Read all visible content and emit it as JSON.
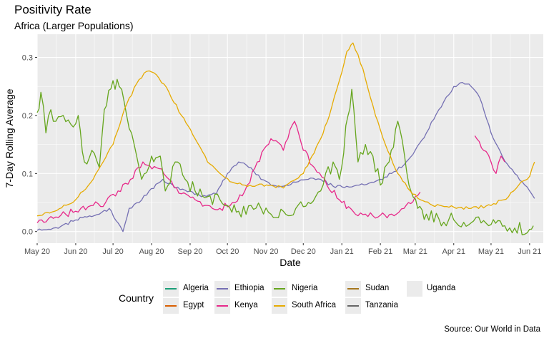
{
  "title": "Positivity Rate",
  "subtitle": "Africa (Larger Populations)",
  "caption": "Source:  Our World in Data",
  "chart_data": {
    "type": "line",
    "xlabel": "Date",
    "ylabel": "7-Day Rolling Average",
    "x_range": [
      "2020-05-01",
      "2021-06-12"
    ],
    "ylim": [
      -0.02,
      0.34
    ],
    "y_ticks": [
      0.0,
      0.1,
      0.2,
      0.3
    ],
    "y_tick_labels": [
      "0.0",
      "0.1",
      "0.2",
      "0.3"
    ],
    "x_ticks": [
      "2020-05-01",
      "2020-06-01",
      "2020-07-01",
      "2020-08-01",
      "2020-09-01",
      "2020-10-01",
      "2020-11-01",
      "2020-12-01",
      "2021-01-01",
      "2021-02-01",
      "2021-03-01",
      "2021-04-01",
      "2021-05-01",
      "2021-06-01"
    ],
    "x_tick_labels": [
      "May 20",
      "Jun 20",
      "Jul 20",
      "Aug 20",
      "Sep 20",
      "Oct 20",
      "Nov 20",
      "Dec 20",
      "Jan 21",
      "Feb 21",
      "Mar 21",
      "Apr 21",
      "May 21",
      "Jun 21"
    ],
    "grid": true,
    "background": "#ebebeb",
    "legend_title": "Country",
    "legend_position": "bottom",
    "series": [
      {
        "name": "Algeria",
        "color": "#1b9e77",
        "points": []
      },
      {
        "name": "Egypt",
        "color": "#d95f02",
        "points": []
      },
      {
        "name": "Ethiopia",
        "color": "#7570b3",
        "points": [
          [
            "2020-05-01",
            0.002
          ],
          [
            "2020-05-10",
            0.004
          ],
          [
            "2020-05-20",
            0.009
          ],
          [
            "2020-06-01",
            0.02
          ],
          [
            "2020-06-10",
            0.025
          ],
          [
            "2020-06-20",
            0.03
          ],
          [
            "2020-06-28",
            0.04
          ],
          [
            "2020-07-05",
            0.015
          ],
          [
            "2020-07-09",
            0.0
          ],
          [
            "2020-07-14",
            0.04
          ],
          [
            "2020-07-22",
            0.05
          ],
          [
            "2020-07-30",
            0.07
          ],
          [
            "2020-08-10",
            0.09
          ],
          [
            "2020-08-20",
            0.075
          ],
          [
            "2020-09-01",
            0.07
          ],
          [
            "2020-09-10",
            0.06
          ],
          [
            "2020-09-22",
            0.065
          ],
          [
            "2020-10-01",
            0.1
          ],
          [
            "2020-10-10",
            0.12
          ],
          [
            "2020-10-20",
            0.11
          ],
          [
            "2020-10-28",
            0.09
          ],
          [
            "2020-11-05",
            0.08
          ],
          [
            "2020-11-15",
            0.078
          ],
          [
            "2020-11-25",
            0.085
          ],
          [
            "2020-12-05",
            0.09
          ],
          [
            "2020-12-15",
            0.09
          ],
          [
            "2020-12-25",
            0.078
          ],
          [
            "2021-01-05",
            0.078
          ],
          [
            "2021-01-15",
            0.08
          ],
          [
            "2021-01-25",
            0.085
          ],
          [
            "2021-02-01",
            0.09
          ],
          [
            "2021-02-10",
            0.1
          ],
          [
            "2021-02-20",
            0.115
          ],
          [
            "2021-03-01",
            0.14
          ],
          [
            "2021-03-10",
            0.17
          ],
          [
            "2021-03-20",
            0.21
          ],
          [
            "2021-04-01",
            0.25
          ],
          [
            "2021-04-08",
            0.257
          ],
          [
            "2021-04-15",
            0.25
          ],
          [
            "2021-04-22",
            0.23
          ],
          [
            "2021-05-01",
            0.17
          ],
          [
            "2021-05-10",
            0.13
          ],
          [
            "2021-05-20",
            0.1
          ],
          [
            "2021-06-01",
            0.07
          ],
          [
            "2021-06-05",
            0.057
          ]
        ]
      },
      {
        "name": "Kenya",
        "color": "#e7298a",
        "points": [
          [
            "2020-05-01",
            0.015
          ],
          [
            "2020-05-10",
            0.022
          ],
          [
            "2020-05-20",
            0.028
          ],
          [
            "2020-06-01",
            0.035
          ],
          [
            "2020-06-15",
            0.045
          ],
          [
            "2020-06-25",
            0.05
          ],
          [
            "2020-07-05",
            0.07
          ],
          [
            "2020-07-15",
            0.09
          ],
          [
            "2020-07-25",
            0.12
          ],
          [
            "2020-08-05",
            0.11
          ],
          [
            "2020-08-15",
            0.09
          ],
          [
            "2020-08-25",
            0.065
          ],
          [
            "2020-09-05",
            0.055
          ],
          [
            "2020-09-15",
            0.045
          ],
          [
            "2020-09-25",
            0.04
          ],
          [
            "2020-10-05",
            0.05
          ],
          [
            "2020-10-15",
            0.07
          ],
          [
            "2020-10-25",
            0.12
          ],
          [
            "2020-11-05",
            0.16
          ],
          [
            "2020-11-15",
            0.14
          ],
          [
            "2020-11-24",
            0.19
          ],
          [
            "2020-12-01",
            0.14
          ],
          [
            "2020-12-10",
            0.11
          ],
          [
            "2020-12-20",
            0.08
          ],
          [
            "2021-01-01",
            0.05
          ],
          [
            "2021-01-10",
            0.035
          ],
          [
            "2021-01-20",
            0.03
          ],
          [
            "2021-02-01",
            0.028
          ],
          [
            "2021-02-10",
            0.03
          ],
          [
            "2021-02-20",
            0.04
          ],
          [
            "2021-03-01",
            0.06
          ],
          [
            "2021-03-05",
            0.068
          ],
          null,
          [
            "2021-04-18",
            0.165
          ],
          [
            "2021-04-25",
            0.14
          ],
          [
            "2021-05-01",
            0.12
          ],
          [
            "2021-05-05",
            0.1
          ],
          [
            "2021-05-09",
            0.13
          ],
          [
            "2021-05-12",
            0.12
          ]
        ]
      },
      {
        "name": "Nigeria",
        "color": "#66a61e",
        "points": [
          [
            "2020-05-01",
            0.205
          ],
          [
            "2020-05-04",
            0.24
          ],
          [
            "2020-05-08",
            0.17
          ],
          [
            "2020-05-12",
            0.21
          ],
          [
            "2020-05-16",
            0.19
          ],
          [
            "2020-05-22",
            0.2
          ],
          [
            "2020-05-28",
            0.185
          ],
          [
            "2020-06-03",
            0.2
          ],
          [
            "2020-06-08",
            0.12
          ],
          [
            "2020-06-14",
            0.14
          ],
          [
            "2020-06-20",
            0.11
          ],
          [
            "2020-06-24",
            0.21
          ],
          [
            "2020-07-01",
            0.26
          ],
          [
            "2020-07-06",
            0.25
          ],
          [
            "2020-07-12",
            0.2
          ],
          [
            "2020-07-18",
            0.15
          ],
          [
            "2020-07-24",
            0.09
          ],
          [
            "2020-08-01",
            0.13
          ],
          [
            "2020-08-08",
            0.13
          ],
          [
            "2020-08-12",
            0.07
          ],
          [
            "2020-08-20",
            0.12
          ],
          [
            "2020-08-28",
            0.09
          ],
          [
            "2020-09-05",
            0.07
          ],
          [
            "2020-09-15",
            0.06
          ],
          [
            "2020-09-25",
            0.055
          ],
          [
            "2020-10-01",
            0.045
          ],
          [
            "2020-10-10",
            0.035
          ],
          [
            "2020-10-20",
            0.045
          ],
          [
            "2020-10-28",
            0.04
          ],
          [
            "2020-11-05",
            0.03
          ],
          [
            "2020-11-15",
            0.035
          ],
          [
            "2020-11-25",
            0.04
          ],
          [
            "2020-12-05",
            0.05
          ],
          [
            "2020-12-15",
            0.07
          ],
          [
            "2020-12-25",
            0.12
          ],
          [
            "2020-12-30",
            0.09
          ],
          [
            "2021-01-06",
            0.2
          ],
          [
            "2021-01-09",
            0.245
          ],
          [
            "2021-01-14",
            0.12
          ],
          [
            "2021-01-20",
            0.15
          ],
          [
            "2021-01-26",
            0.13
          ],
          [
            "2021-02-01",
            0.08
          ],
          [
            "2021-02-08",
            0.12
          ],
          [
            "2021-02-15",
            0.19
          ],
          [
            "2021-02-24",
            0.08
          ],
          [
            "2021-03-03",
            0.04
          ],
          [
            "2021-03-10",
            0.03
          ],
          [
            "2021-03-20",
            0.022
          ],
          [
            "2021-04-01",
            0.02
          ],
          [
            "2021-04-15",
            0.015
          ],
          [
            "2021-05-01",
            0.012
          ],
          [
            "2021-05-12",
            0.01
          ],
          [
            "2021-05-20",
            0.006
          ],
          [
            "2021-06-01",
            0.004
          ],
          [
            "2021-06-04",
            0.01
          ]
        ]
      },
      {
        "name": "South Africa",
        "color": "#e6ab02",
        "points": [
          [
            "2020-05-01",
            0.027
          ],
          [
            "2020-05-15",
            0.035
          ],
          [
            "2020-06-01",
            0.055
          ],
          [
            "2020-06-15",
            0.09
          ],
          [
            "2020-07-01",
            0.15
          ],
          [
            "2020-07-10",
            0.21
          ],
          [
            "2020-07-20",
            0.255
          ],
          [
            "2020-07-28",
            0.276
          ],
          [
            "2020-08-05",
            0.27
          ],
          [
            "2020-08-15",
            0.24
          ],
          [
            "2020-08-25",
            0.2
          ],
          [
            "2020-09-05",
            0.16
          ],
          [
            "2020-09-15",
            0.12
          ],
          [
            "2020-09-25",
            0.1
          ],
          [
            "2020-10-05",
            0.085
          ],
          [
            "2020-10-15",
            0.08
          ],
          [
            "2020-10-25",
            0.08
          ],
          [
            "2020-11-05",
            0.08
          ],
          [
            "2020-11-15",
            0.075
          ],
          [
            "2020-11-25",
            0.09
          ],
          [
            "2020-12-01",
            0.1
          ],
          [
            "2020-12-08",
            0.13
          ],
          [
            "2020-12-15",
            0.16
          ],
          [
            "2020-12-22",
            0.2
          ],
          [
            "2020-12-30",
            0.26
          ],
          [
            "2021-01-05",
            0.31
          ],
          [
            "2021-01-10",
            0.325
          ],
          [
            "2021-01-18",
            0.28
          ],
          [
            "2021-01-28",
            0.2
          ],
          [
            "2021-02-05",
            0.15
          ],
          [
            "2021-02-15",
            0.1
          ],
          [
            "2021-02-25",
            0.07
          ],
          [
            "2021-03-05",
            0.055
          ],
          [
            "2021-03-15",
            0.045
          ],
          [
            "2021-04-01",
            0.042
          ],
          [
            "2021-04-15",
            0.04
          ],
          [
            "2021-05-01",
            0.045
          ],
          [
            "2021-05-15",
            0.06
          ],
          [
            "2021-05-25",
            0.085
          ],
          [
            "2021-06-01",
            0.095
          ],
          [
            "2021-06-05",
            0.12
          ]
        ]
      },
      {
        "name": "Sudan",
        "color": "#a6761d",
        "points": []
      },
      {
        "name": "Tanzania",
        "color": "#666666",
        "points": []
      },
      {
        "name": "Uganda",
        "color": "",
        "points": []
      }
    ]
  }
}
